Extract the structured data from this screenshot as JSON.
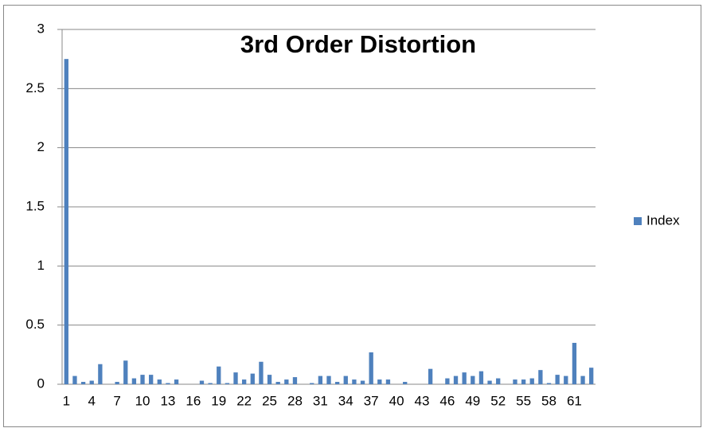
{
  "chart_data": {
    "type": "bar",
    "title": "3rd Order Distortion",
    "categories": [
      "1",
      null,
      null,
      "4",
      null,
      null,
      "7",
      null,
      null,
      "10",
      null,
      null,
      "13",
      null,
      null,
      "16",
      null,
      null,
      "19",
      null,
      null,
      "22",
      null,
      null,
      "25",
      null,
      null,
      "28",
      null,
      null,
      "31",
      null,
      null,
      "34",
      null,
      null,
      "37",
      null,
      null,
      "40",
      null,
      null,
      "43",
      null,
      null,
      "46",
      null,
      null,
      "49",
      null,
      null,
      "52",
      null,
      null,
      "55",
      null,
      null,
      "58",
      null,
      null,
      "61",
      null,
      null
    ],
    "series": [
      {
        "name": "Index",
        "color": "#4f81bd",
        "values": [
          2.75,
          0.07,
          0.02,
          0.03,
          0.17,
          0,
          0.02,
          0.2,
          0.05,
          0.08,
          0.08,
          0.04,
          0.01,
          0.04,
          0,
          0,
          0.03,
          0.01,
          0.15,
          0.01,
          0.1,
          0.04,
          0.09,
          0.19,
          0.08,
          0.02,
          0.04,
          0.06,
          0,
          0.01,
          0.07,
          0.07,
          0.02,
          0.07,
          0.04,
          0.03,
          0.27,
          0.04,
          0.04,
          0,
          0.02,
          0,
          0,
          0.13,
          0,
          0.05,
          0.07,
          0.1,
          0.07,
          0.11,
          0.03,
          0.05,
          0,
          0.04,
          0.04,
          0.05,
          0.12,
          0.01,
          0.08,
          0.07,
          0.35,
          0.07,
          0.14
        ]
      }
    ],
    "ylim": [
      0,
      3
    ],
    "yticks": [
      0,
      0.5,
      1,
      1.5,
      2,
      2.5,
      3
    ],
    "grid": true,
    "legend": "right"
  }
}
